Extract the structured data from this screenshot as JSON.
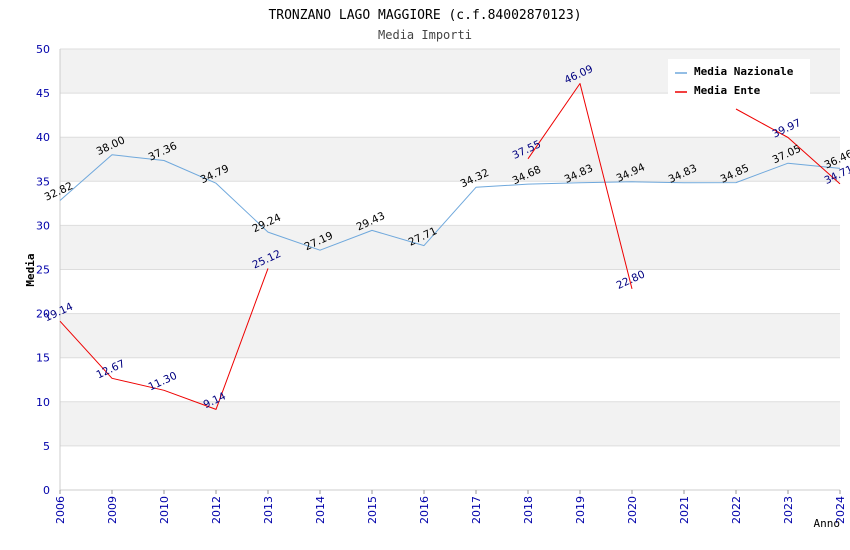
{
  "chart_data": {
    "type": "line",
    "title": "TRONZANO LAGO MAGGIORE (c.f.84002870123)",
    "subtitle": "Media Importi",
    "xlabel": "Anno",
    "ylabel": "Media",
    "ylim": [
      0,
      50
    ],
    "yticks": [
      "0",
      "5",
      "10",
      "15",
      "20",
      "25",
      "30",
      "35",
      "40",
      "45",
      "50"
    ],
    "categories": [
      "2006",
      "2009",
      "2010",
      "2012",
      "2013",
      "2014",
      "2015",
      "2016",
      "2017",
      "2018",
      "2019",
      "2020",
      "2021",
      "2022",
      "2023",
      "2024"
    ],
    "legend_position": "top-right",
    "series": [
      {
        "name": "Media Nazionale",
        "color": "#6fa8dc",
        "label_color": "#000000",
        "values": [
          32.82,
          38.0,
          37.36,
          34.79,
          29.24,
          27.19,
          29.43,
          27.71,
          34.32,
          34.68,
          34.83,
          34.94,
          34.83,
          34.85,
          37.05,
          36.46
        ],
        "labels": [
          "32.82",
          "38.00",
          "37.36",
          "34.79",
          "29.24",
          "27.19",
          "29.43",
          "27.71",
          "34.32",
          "34.68",
          "34.83",
          "34.94",
          "34.83",
          "34.85",
          "37.05",
          "36.46"
        ]
      },
      {
        "name": "Media Ente",
        "color": "#ee0000",
        "label_color": "#000080",
        "values": [
          19.14,
          12.67,
          11.3,
          9.14,
          25.12,
          null,
          null,
          null,
          null,
          37.55,
          46.09,
          22.8,
          null,
          43.2,
          39.97,
          34.71
        ],
        "labels": [
          "19.14",
          "12.67",
          "11.30",
          "9.14",
          "25.12",
          null,
          null,
          null,
          null,
          "37.55",
          "46.09",
          "22.80",
          null,
          null,
          "39.97",
          "34.71"
        ]
      }
    ]
  }
}
